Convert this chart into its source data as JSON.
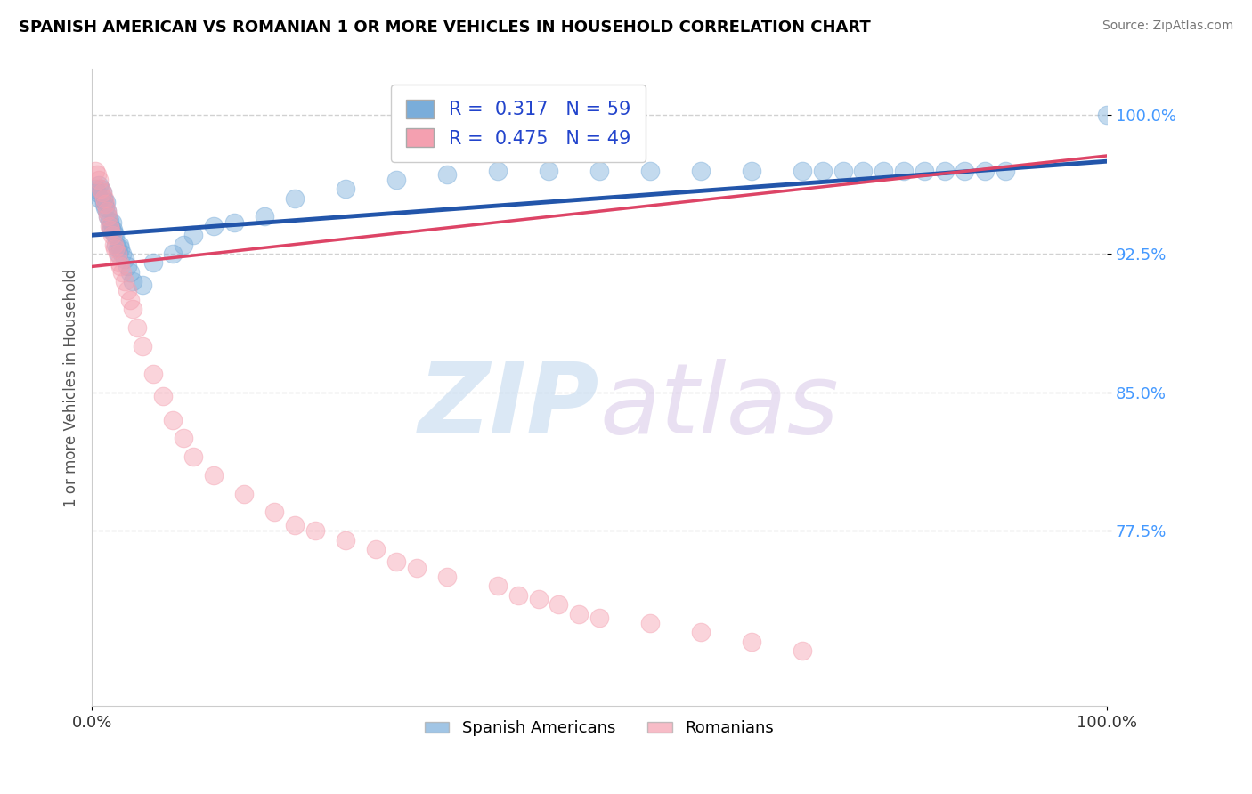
{
  "title": "SPANISH AMERICAN VS ROMANIAN 1 OR MORE VEHICLES IN HOUSEHOLD CORRELATION CHART",
  "source": "Source: ZipAtlas.com",
  "ylabel": "1 or more Vehicles in Household",
  "xlim": [
    0.0,
    1.0
  ],
  "ylim": [
    0.68,
    1.025
  ],
  "yticks": [
    0.775,
    0.85,
    0.925,
    1.0
  ],
  "ytick_labels": [
    "77.5%",
    "85.0%",
    "92.5%",
    "100.0%"
  ],
  "blue_color": "#7AADDA",
  "pink_color": "#F4A0B0",
  "blue_line_color": "#2255AA",
  "pink_line_color": "#DD4466",
  "R_blue": 0.317,
  "N_blue": 59,
  "R_pink": 0.475,
  "N_pink": 49,
  "legend_label_blue": "Spanish Americans",
  "legend_label_pink": "Romanians",
  "watermark_zip": "ZIP",
  "watermark_atlas": "atlas",
  "blue_x": [
    0.003,
    0.005,
    0.007,
    0.008,
    0.009,
    0.01,
    0.011,
    0.012,
    0.013,
    0.014,
    0.015,
    0.016,
    0.017,
    0.018,
    0.019,
    0.02,
    0.021,
    0.022,
    0.023,
    0.024,
    0.025,
    0.026,
    0.027,
    0.028,
    0.03,
    0.032,
    0.035,
    0.038,
    0.04,
    0.05,
    0.06,
    0.08,
    0.09,
    0.1,
    0.12,
    0.14,
    0.17,
    0.2,
    0.25,
    0.3,
    0.35,
    0.4,
    0.45,
    0.5,
    0.55,
    0.6,
    0.65,
    0.7,
    0.72,
    0.74,
    0.76,
    0.78,
    0.8,
    0.82,
    0.84,
    0.86,
    0.88,
    0.9,
    1.0
  ],
  "blue_y": [
    0.96,
    0.958,
    0.962,
    0.955,
    0.96,
    0.958,
    0.955,
    0.952,
    0.95,
    0.953,
    0.948,
    0.945,
    0.943,
    0.94,
    0.938,
    0.942,
    0.938,
    0.936,
    0.935,
    0.93,
    0.928,
    0.925,
    0.93,
    0.928,
    0.925,
    0.922,
    0.918,
    0.915,
    0.91,
    0.908,
    0.92,
    0.925,
    0.93,
    0.935,
    0.94,
    0.942,
    0.945,
    0.955,
    0.96,
    0.965,
    0.968,
    0.97,
    0.97,
    0.97,
    0.97,
    0.97,
    0.97,
    0.97,
    0.97,
    0.97,
    0.97,
    0.97,
    0.97,
    0.97,
    0.97,
    0.97,
    0.97,
    0.97,
    1.0
  ],
  "pink_x": [
    0.003,
    0.005,
    0.007,
    0.009,
    0.01,
    0.012,
    0.013,
    0.015,
    0.016,
    0.017,
    0.018,
    0.02,
    0.022,
    0.023,
    0.025,
    0.027,
    0.028,
    0.03,
    0.032,
    0.035,
    0.038,
    0.04,
    0.045,
    0.05,
    0.06,
    0.07,
    0.08,
    0.09,
    0.1,
    0.12,
    0.15,
    0.18,
    0.2,
    0.22,
    0.25,
    0.28,
    0.3,
    0.32,
    0.35,
    0.4,
    0.42,
    0.44,
    0.46,
    0.48,
    0.5,
    0.55,
    0.6,
    0.65,
    0.7
  ],
  "pink_y": [
    0.97,
    0.968,
    0.965,
    0.96,
    0.958,
    0.955,
    0.952,
    0.948,
    0.945,
    0.94,
    0.938,
    0.935,
    0.93,
    0.928,
    0.925,
    0.92,
    0.918,
    0.915,
    0.91,
    0.905,
    0.9,
    0.895,
    0.885,
    0.875,
    0.86,
    0.848,
    0.835,
    0.825,
    0.815,
    0.805,
    0.795,
    0.785,
    0.778,
    0.775,
    0.77,
    0.765,
    0.758,
    0.755,
    0.75,
    0.745,
    0.74,
    0.738,
    0.735,
    0.73,
    0.728,
    0.725,
    0.72,
    0.715,
    0.71
  ]
}
